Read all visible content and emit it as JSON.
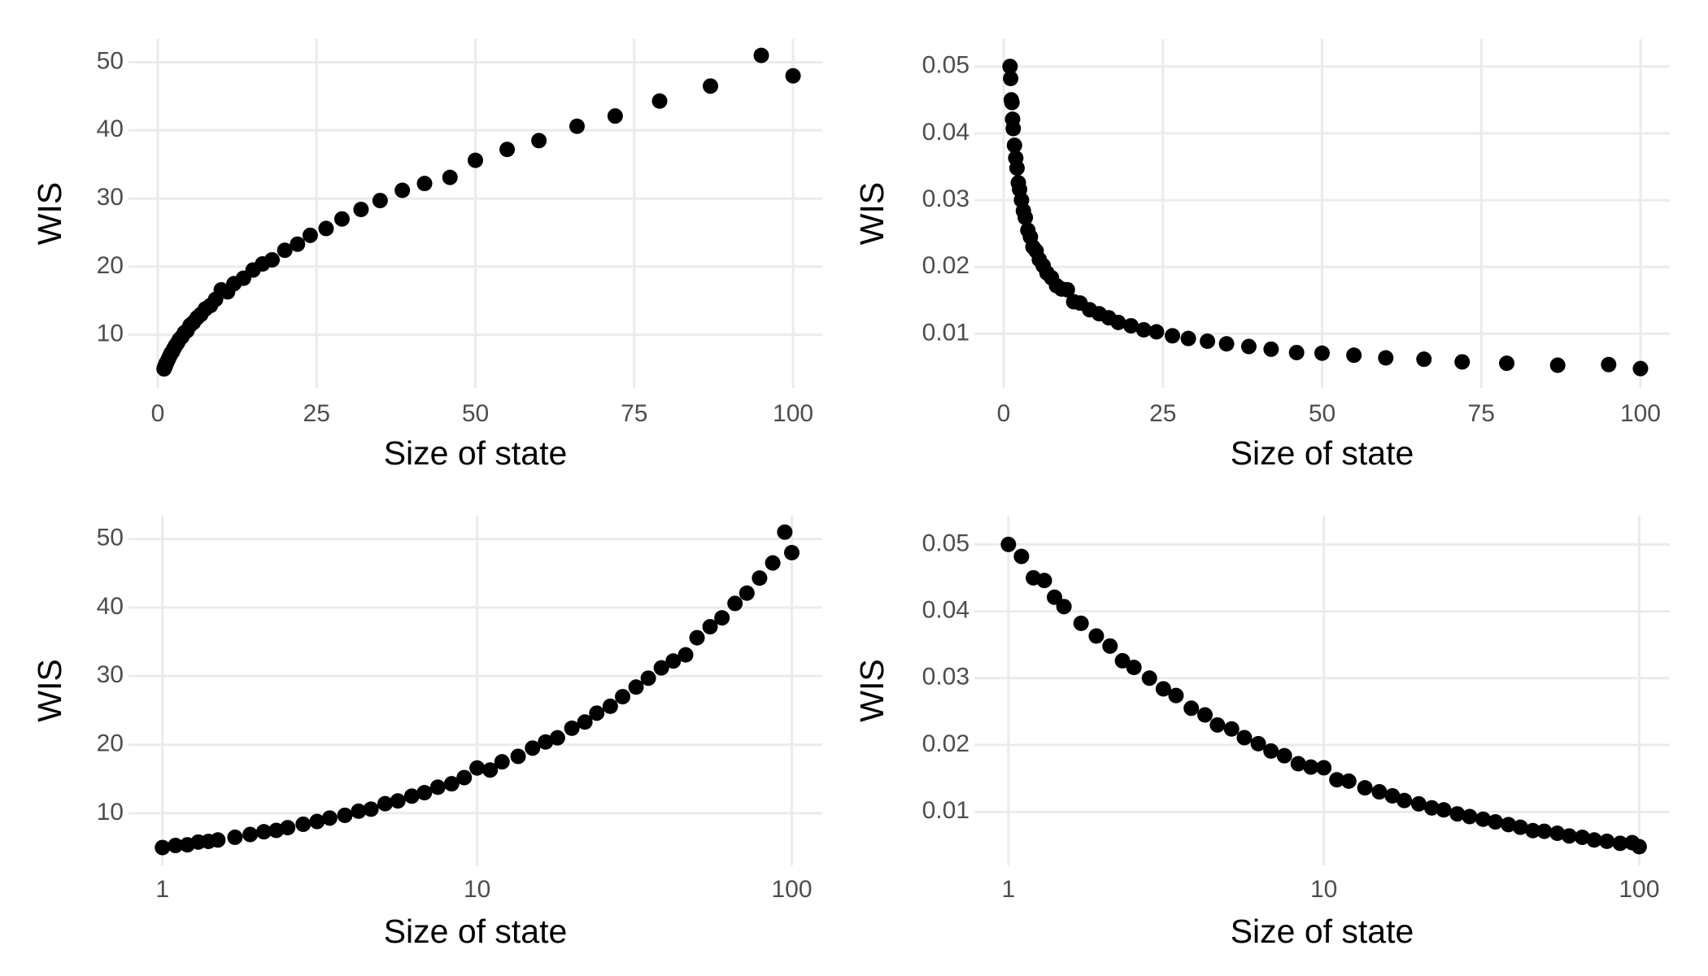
{
  "chart_data": [
    {
      "type": "scatter",
      "xlabel": "Size of state",
      "ylabel": "WIS",
      "xscale": "linear",
      "grid": true,
      "color": "#000000",
      "xlim": [
        -4.6,
        104.6
      ],
      "ylim": [
        2.2,
        53.4
      ],
      "xticks": [
        0,
        25,
        50,
        75,
        100
      ],
      "yticks": [
        10,
        20,
        30,
        40,
        50
      ],
      "x": [
        1.0,
        1.1,
        1.2,
        1.3,
        1.4,
        1.5,
        1.7,
        1.9,
        2.1,
        2.3,
        2.5,
        2.8,
        3.1,
        3.4,
        3.8,
        4.2,
        4.6,
        5.1,
        5.6,
        6.2,
        6.8,
        7.5,
        8.3,
        9.1,
        10,
        11,
        12,
        13.5,
        15,
        16.5,
        18,
        20,
        22,
        24,
        26.5,
        29,
        32,
        35,
        38.5,
        42,
        46,
        50,
        55,
        60,
        66,
        72,
        79,
        87,
        95,
        100
      ],
      "values": [
        5.0,
        5.3,
        5.4,
        5.8,
        5.9,
        6.1,
        6.5,
        6.9,
        7.3,
        7.5,
        7.9,
        8.4,
        8.8,
        9.3,
        9.7,
        10.3,
        10.6,
        11.4,
        11.8,
        12.5,
        13.0,
        13.8,
        14.3,
        15.2,
        16.6,
        16.3,
        17.5,
        18.3,
        19.5,
        20.4,
        21.0,
        22.4,
        23.3,
        24.6,
        25.6,
        27.0,
        28.4,
        29.7,
        31.2,
        32.2,
        33.1,
        35.6,
        37.2,
        38.5,
        40.6,
        42.1,
        44.3,
        46.5,
        51.0,
        48.0
      ]
    },
    {
      "type": "scatter",
      "xlabel": "Size of state",
      "ylabel": "WIS",
      "xscale": "linear",
      "grid": true,
      "color": "#000000",
      "xlim": [
        -4.6,
        104.6
      ],
      "ylim": [
        0.0019,
        0.0541
      ],
      "xticks": [
        0,
        25,
        50,
        75,
        100
      ],
      "yticks": [
        0.01,
        0.02,
        0.03,
        0.04,
        0.05
      ],
      "x": [
        1.0,
        1.1,
        1.2,
        1.3,
        1.4,
        1.5,
        1.7,
        1.9,
        2.1,
        2.3,
        2.5,
        2.8,
        3.1,
        3.4,
        3.8,
        4.2,
        4.6,
        5.1,
        5.6,
        6.2,
        6.8,
        7.5,
        8.3,
        9.1,
        10,
        11,
        12,
        13.5,
        15,
        16.5,
        18,
        20,
        22,
        24,
        26.5,
        29,
        32,
        35,
        38.5,
        42,
        46,
        50,
        55,
        60,
        66,
        72,
        79,
        87,
        95,
        100
      ],
      "values": [
        0.05,
        0.0482,
        0.045,
        0.0446,
        0.0421,
        0.0407,
        0.0382,
        0.0363,
        0.0348,
        0.0326,
        0.0316,
        0.03,
        0.0284,
        0.0274,
        0.0255,
        0.0245,
        0.023,
        0.0224,
        0.0211,
        0.0202,
        0.0191,
        0.0184,
        0.0172,
        0.0167,
        0.0166,
        0.0148,
        0.0146,
        0.0136,
        0.013,
        0.0124,
        0.0117,
        0.0112,
        0.0106,
        0.0103,
        0.0097,
        0.0093,
        0.0089,
        0.0085,
        0.0081,
        0.0077,
        0.0072,
        0.0071,
        0.0068,
        0.0064,
        0.0062,
        0.0058,
        0.0056,
        0.0053,
        0.0054,
        0.0048
      ]
    },
    {
      "type": "scatter",
      "xlabel": "Size of state",
      "ylabel": "WIS",
      "xscale": "log",
      "grid": true,
      "color": "#000000",
      "xlim": [
        0.78,
        125
      ],
      "ylim": [
        2.4,
        53.4
      ],
      "xticks": [
        1,
        10,
        100
      ],
      "yticks": [
        10,
        20,
        30,
        40,
        50
      ],
      "x": [
        1.0,
        1.1,
        1.2,
        1.3,
        1.4,
        1.5,
        1.7,
        1.9,
        2.1,
        2.3,
        2.5,
        2.8,
        3.1,
        3.4,
        3.8,
        4.2,
        4.6,
        5.1,
        5.6,
        6.2,
        6.8,
        7.5,
        8.3,
        9.1,
        10,
        11,
        12,
        13.5,
        15,
        16.5,
        18,
        20,
        22,
        24,
        26.5,
        29,
        32,
        35,
        38.5,
        42,
        46,
        50,
        55,
        60,
        66,
        72,
        79,
        87,
        95,
        100
      ],
      "values": [
        5.0,
        5.3,
        5.4,
        5.8,
        5.9,
        6.1,
        6.5,
        6.9,
        7.3,
        7.5,
        7.9,
        8.4,
        8.8,
        9.3,
        9.7,
        10.3,
        10.6,
        11.4,
        11.8,
        12.5,
        13.0,
        13.8,
        14.3,
        15.2,
        16.6,
        16.3,
        17.5,
        18.3,
        19.5,
        20.4,
        21.0,
        22.4,
        23.3,
        24.6,
        25.6,
        27.0,
        28.4,
        29.7,
        31.2,
        32.2,
        33.1,
        35.6,
        37.2,
        38.5,
        40.6,
        42.1,
        44.3,
        46.5,
        51.0,
        48.0
      ]
    },
    {
      "type": "scatter",
      "xlabel": "Size of state",
      "ylabel": "WIS",
      "xscale": "log",
      "grid": true,
      "color": "#000000",
      "xlim": [
        0.78,
        125
      ],
      "ylim": [
        0.002,
        0.0543
      ],
      "xticks": [
        1,
        10,
        100
      ],
      "yticks": [
        0.01,
        0.02,
        0.03,
        0.04,
        0.05
      ],
      "x": [
        1.0,
        1.1,
        1.2,
        1.3,
        1.4,
        1.5,
        1.7,
        1.9,
        2.1,
        2.3,
        2.5,
        2.8,
        3.1,
        3.4,
        3.8,
        4.2,
        4.6,
        5.1,
        5.6,
        6.2,
        6.8,
        7.5,
        8.3,
        9.1,
        10,
        11,
        12,
        13.5,
        15,
        16.5,
        18,
        20,
        22,
        24,
        26.5,
        29,
        32,
        35,
        38.5,
        42,
        46,
        50,
        55,
        60,
        66,
        72,
        79,
        87,
        95,
        100
      ],
      "values": [
        0.05,
        0.0482,
        0.045,
        0.0446,
        0.0421,
        0.0407,
        0.0382,
        0.0363,
        0.0348,
        0.0326,
        0.0316,
        0.03,
        0.0284,
        0.0274,
        0.0255,
        0.0245,
        0.023,
        0.0224,
        0.0211,
        0.0202,
        0.0191,
        0.0184,
        0.0172,
        0.0167,
        0.0166,
        0.0148,
        0.0146,
        0.0136,
        0.013,
        0.0124,
        0.0117,
        0.0112,
        0.0106,
        0.0103,
        0.0097,
        0.0093,
        0.0089,
        0.0085,
        0.0081,
        0.0077,
        0.0072,
        0.0071,
        0.0068,
        0.0064,
        0.0062,
        0.0058,
        0.0056,
        0.0053,
        0.0054,
        0.0048
      ]
    }
  ]
}
